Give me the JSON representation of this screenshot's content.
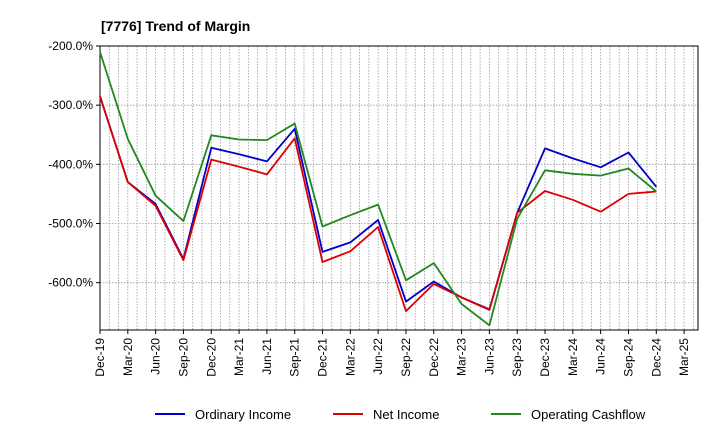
{
  "chart_data": {
    "type": "line",
    "title": "[7776]  Trend of Margin",
    "xlabel": "",
    "ylabel": "",
    "ylim": [
      -680,
      -200
    ],
    "yticks": [
      -200,
      -300,
      -400,
      -500,
      -600
    ],
    "ytick_labels": [
      "-200.0%",
      "-300.0%",
      "-400.0%",
      "-500.0%",
      "-600.0%"
    ],
    "x_tick_labels": [
      "Dec-19",
      "Mar-20",
      "Jun-20",
      "Sep-20",
      "Dec-20",
      "Mar-21",
      "Jun-21",
      "Sep-21",
      "Dec-21",
      "Mar-22",
      "Jun-22",
      "Sep-22",
      "Dec-22",
      "Mar-23",
      "Jun-23",
      "Sep-23",
      "Dec-23",
      "Mar-24",
      "Jun-24",
      "Sep-24",
      "Dec-24",
      "Mar-25"
    ],
    "x": [
      "Dec-19",
      "Mar-20",
      "Jun-20",
      "Sep-20",
      "Dec-20",
      "Mar-21",
      "Jun-21",
      "Sep-21",
      "Dec-21",
      "Mar-22",
      "Jun-22",
      "Sep-22",
      "Dec-22",
      "Mar-23",
      "Jun-23",
      "Sep-23",
      "Dec-23",
      "Mar-24",
      "Jun-24",
      "Sep-24",
      "Dec-24"
    ],
    "grid": true,
    "legend_position": "bottom",
    "series": [
      {
        "name": "Ordinary Income",
        "color": "#0000cc",
        "values": [
          -285,
          -430,
          -467,
          -560,
          -372,
          -383,
          -395,
          -340,
          -548,
          -532,
          -494,
          -632,
          -598,
          -625,
          -645,
          -482,
          -373,
          -390,
          -405,
          -380,
          -438
        ]
      },
      {
        "name": "Net Income",
        "color": "#dd0000",
        "values": [
          -285,
          -430,
          -470,
          -562,
          -392,
          -404,
          -417,
          -356,
          -565,
          -547,
          -506,
          -648,
          -602,
          -625,
          -646,
          -482,
          -445,
          -460,
          -480,
          -450,
          -446
        ]
      },
      {
        "name": "Operating Cashflow",
        "color": "#228822",
        "values": [
          -210,
          -357,
          -453,
          -496,
          -351,
          -358,
          -359,
          -331,
          -505,
          -486,
          -468,
          -596,
          -567,
          -636,
          -672,
          -492,
          -410,
          -416,
          -419,
          -407,
          -446
        ]
      }
    ]
  }
}
